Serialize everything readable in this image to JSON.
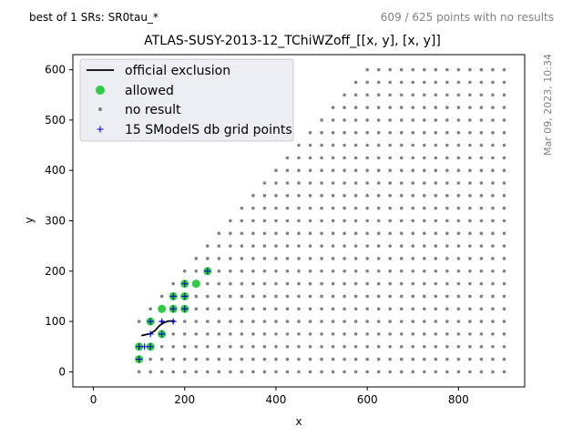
{
  "header": {
    "left_text": "best of 1 SRs: SR0tau_*",
    "right_text": "609 / 625 points with no results",
    "side_text": "Mar 09, 2023, 10:34"
  },
  "colors": {
    "no_result": "#808080",
    "allowed": "#2ecc40",
    "grid_point": "#0000cc",
    "exclusion": "#000000",
    "legend_bg": "#eaeaf2"
  },
  "chart_data": {
    "type": "scatter",
    "title": "ATLAS-SUSY-2013-12_TChiWZoff_[[x, y], [x, y]]",
    "xlabel": "x",
    "ylabel": "y",
    "xlim": [
      -45,
      945
    ],
    "ylim": [
      -30,
      630
    ],
    "xticks": [
      0,
      200,
      400,
      600,
      800
    ],
    "yticks": [
      0,
      100,
      200,
      300,
      400,
      500,
      600
    ],
    "grid": false,
    "legend": {
      "placement": "top-left",
      "entries": [
        {
          "label": "official exclusion",
          "marker": "line"
        },
        {
          "label": "allowed",
          "marker": "dot"
        },
        {
          "label": "no result",
          "marker": "small-dot"
        },
        {
          "label": "15 SModelS db grid points",
          "marker": "plus"
        }
      ]
    },
    "no_result_region": {
      "description": "points on a 25-unit grid with 0 <= y <= x - 100 (for y < 100) or y <= x (above), x up to 900, y up to 600",
      "step": 25,
      "x_max": 900,
      "y_max": 600
    },
    "allowed_points": [
      {
        "x": 100,
        "y": 25
      },
      {
        "x": 100,
        "y": 50
      },
      {
        "x": 125,
        "y": 50
      },
      {
        "x": 125,
        "y": 100
      },
      {
        "x": 150,
        "y": 75
      },
      {
        "x": 150,
        "y": 125
      },
      {
        "x": 175,
        "y": 125
      },
      {
        "x": 175,
        "y": 150
      },
      {
        "x": 200,
        "y": 125
      },
      {
        "x": 200,
        "y": 150
      },
      {
        "x": 200,
        "y": 175
      },
      {
        "x": 225,
        "y": 175
      },
      {
        "x": 250,
        "y": 200
      }
    ],
    "grid_points": [
      {
        "x": 100,
        "y": 25
      },
      {
        "x": 100,
        "y": 50
      },
      {
        "x": 112,
        "y": 50
      },
      {
        "x": 125,
        "y": 50
      },
      {
        "x": 125,
        "y": 75
      },
      {
        "x": 125,
        "y": 100
      },
      {
        "x": 150,
        "y": 75
      },
      {
        "x": 150,
        "y": 100
      },
      {
        "x": 175,
        "y": 100
      },
      {
        "x": 175,
        "y": 125
      },
      {
        "x": 175,
        "y": 150
      },
      {
        "x": 200,
        "y": 125
      },
      {
        "x": 200,
        "y": 150
      },
      {
        "x": 200,
        "y": 175
      },
      {
        "x": 250,
        "y": 200
      }
    ],
    "exclusion_line": {
      "x": [
        105,
        115,
        125,
        135,
        145,
        155,
        165,
        178
      ],
      "y": [
        72,
        74,
        76,
        82,
        92,
        98,
        101,
        101
      ]
    }
  }
}
